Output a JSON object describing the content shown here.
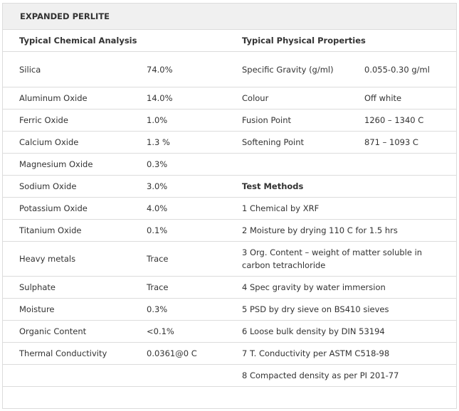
{
  "title": "EXPANDED PERLITE",
  "headers": {
    "chemical": "Typical Chemical Analysis",
    "physical": "Typical Physical Properties"
  },
  "chemical": [
    {
      "name": "Silica",
      "value": "74.0%"
    },
    {
      "name": "Aluminum Oxide",
      "value": "14.0%"
    },
    {
      "name": "Ferric Oxide",
      "value": "1.0%"
    },
    {
      "name": "Calcium Oxide",
      "value": "1.3 %"
    },
    {
      "name": "Magnesium Oxide",
      "value": "0.3%"
    },
    {
      "name": "Sodium Oxide",
      "value": "3.0%"
    },
    {
      "name": "Potassium Oxide",
      "value": "4.0%"
    },
    {
      "name": "Titanium Oxide",
      "value": "0.1%"
    },
    {
      "name": "Heavy metals",
      "value": "Trace"
    },
    {
      "name": "Sulphate",
      "value": "Trace"
    },
    {
      "name": "Moisture",
      "value": "0.3%"
    },
    {
      "name": "Organic Content",
      "value": "<0.1%"
    },
    {
      "name": "Thermal Conductivity",
      "value": "0.0361@0 C"
    }
  ],
  "physical": [
    {
      "name": "Specific Gravity (g/ml)",
      "value": "0.055-0.30 g/ml"
    },
    {
      "name": "Colour",
      "value": "Off white"
    },
    {
      "name": "Fusion Point",
      "value": "1260 – 1340 C"
    },
    {
      "name": "Softening Point",
      "value": "871 – 1093 C"
    }
  ],
  "test_methods_header": "Test Methods",
  "test_methods": [
    "1 Chemical by XRF",
    "2 Moisture by drying 110 C for 1.5 hrs",
    "3 Org. Content – weight of matter soluble in carbon tetrachloride",
    "4 Spec gravity by water immersion",
    "5 PSD by dry sieve on BS410 sieves",
    "6 Loose bulk density by DIN 53194",
    "7 T. Conductivity per ASTM C518-98",
    "8 Compacted density as per PI 201-77"
  ]
}
